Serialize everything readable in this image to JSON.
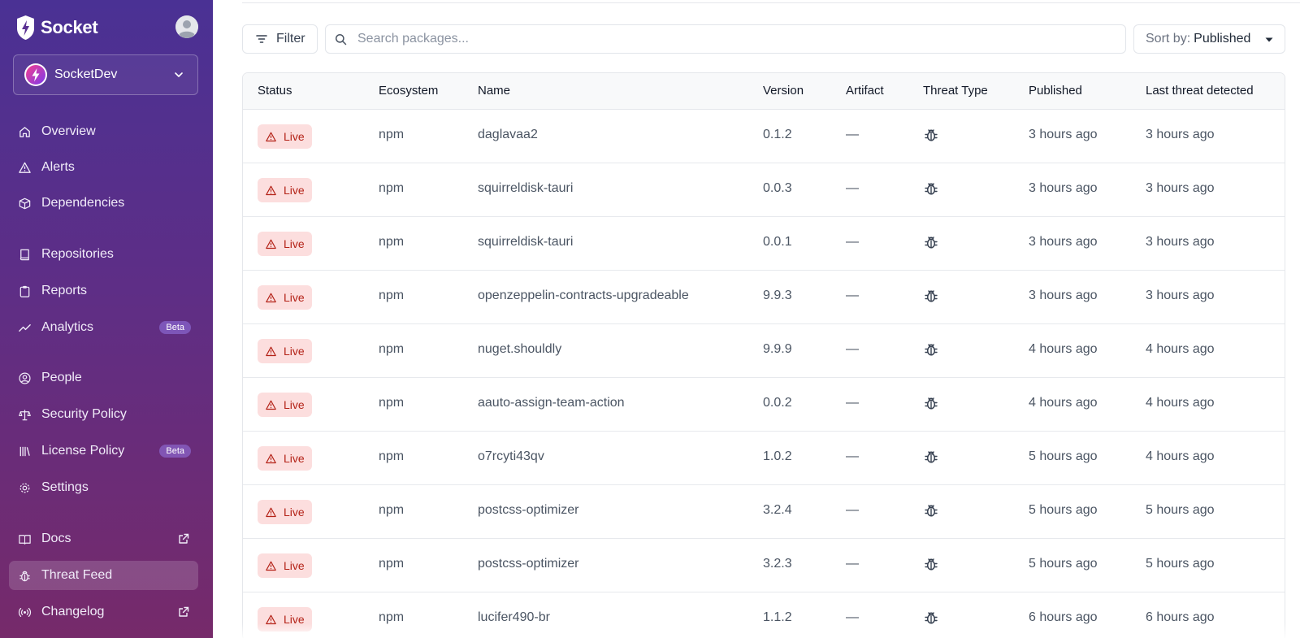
{
  "brand": {
    "name": "Socket"
  },
  "org": {
    "name": "SocketDev"
  },
  "nav": [
    {
      "key": "overview",
      "label": "Overview",
      "icon": "home-icon"
    },
    {
      "key": "alerts",
      "label": "Alerts",
      "icon": "warning-icon"
    },
    {
      "key": "dependencies",
      "label": "Dependencies",
      "icon": "package-icon"
    },
    {
      "key": "repositories",
      "label": "Repositories",
      "icon": "book-icon"
    },
    {
      "key": "reports",
      "label": "Reports",
      "icon": "clipboard-icon"
    },
    {
      "key": "analytics",
      "label": "Analytics",
      "icon": "trend-icon",
      "badge": "Beta"
    },
    {
      "key": "people",
      "label": "People",
      "icon": "person-circle-icon"
    },
    {
      "key": "security-policy",
      "label": "Security Policy",
      "icon": "scale-icon"
    },
    {
      "key": "license-policy",
      "label": "License Policy",
      "icon": "library-icon",
      "badge": "Beta"
    },
    {
      "key": "settings",
      "label": "Settings",
      "icon": "gear-icon"
    },
    {
      "key": "docs",
      "label": "Docs",
      "icon": "docs-icon",
      "external": true
    },
    {
      "key": "threat-feed",
      "label": "Threat Feed",
      "icon": "bug-icon",
      "active": true
    },
    {
      "key": "changelog",
      "label": "Changelog",
      "icon": "broadcast-icon",
      "external": true
    }
  ],
  "toolbar": {
    "filter_label": "Filter",
    "search_placeholder": "Search packages...",
    "sort_prefix": "Sort by:",
    "sort_value": "Published"
  },
  "table": {
    "headers": {
      "status": "Status",
      "ecosystem": "Ecosystem",
      "name": "Name",
      "version": "Version",
      "artifact": "Artifact",
      "threat_type": "Threat Type",
      "published": "Published",
      "last_threat": "Last threat detected"
    },
    "rows": [
      {
        "status": "Live",
        "ecosystem": "npm",
        "name": "daglavaa2",
        "version": "0.1.2",
        "artifact": "—",
        "threat_icon": "bug-icon",
        "published": "3 hours ago",
        "last_threat": "3 hours ago"
      },
      {
        "status": "Live",
        "ecosystem": "npm",
        "name": "squirreldisk-tauri",
        "version": "0.0.3",
        "artifact": "—",
        "threat_icon": "bug-icon",
        "published": "3 hours ago",
        "last_threat": "3 hours ago"
      },
      {
        "status": "Live",
        "ecosystem": "npm",
        "name": "squirreldisk-tauri",
        "version": "0.0.1",
        "artifact": "—",
        "threat_icon": "bug-icon",
        "published": "3 hours ago",
        "last_threat": "3 hours ago"
      },
      {
        "status": "Live",
        "ecosystem": "npm",
        "name": "openzeppelin-contracts-upgradeable",
        "version": "9.9.3",
        "artifact": "—",
        "threat_icon": "bug-icon",
        "published": "3 hours ago",
        "last_threat": "3 hours ago"
      },
      {
        "status": "Live",
        "ecosystem": "npm",
        "name": "nuget.shouldly",
        "version": "9.9.9",
        "artifact": "—",
        "threat_icon": "bug-icon",
        "published": "4 hours ago",
        "last_threat": "4 hours ago"
      },
      {
        "status": "Live",
        "ecosystem": "npm",
        "name": "aauto-assign-team-action",
        "version": "0.0.2",
        "artifact": "—",
        "threat_icon": "bug-icon",
        "published": "4 hours ago",
        "last_threat": "4 hours ago"
      },
      {
        "status": "Live",
        "ecosystem": "npm",
        "name": "o7rcyti43qv",
        "version": "1.0.2",
        "artifact": "—",
        "threat_icon": "bug-icon",
        "published": "5 hours ago",
        "last_threat": "4 hours ago"
      },
      {
        "status": "Live",
        "ecosystem": "npm",
        "name": "postcss-optimizer",
        "version": "3.2.4",
        "artifact": "—",
        "threat_icon": "bug-icon",
        "published": "5 hours ago",
        "last_threat": "5 hours ago"
      },
      {
        "status": "Live",
        "ecosystem": "npm",
        "name": "postcss-optimizer",
        "version": "3.2.3",
        "artifact": "—",
        "threat_icon": "bug-icon",
        "published": "5 hours ago",
        "last_threat": "5 hours ago"
      },
      {
        "status": "Live",
        "ecosystem": "npm",
        "name": "lucifer490-br",
        "version": "1.1.2",
        "artifact": "—",
        "threat_icon": "bug-icon",
        "published": "6 hours ago",
        "last_threat": "6 hours ago"
      }
    ]
  }
}
